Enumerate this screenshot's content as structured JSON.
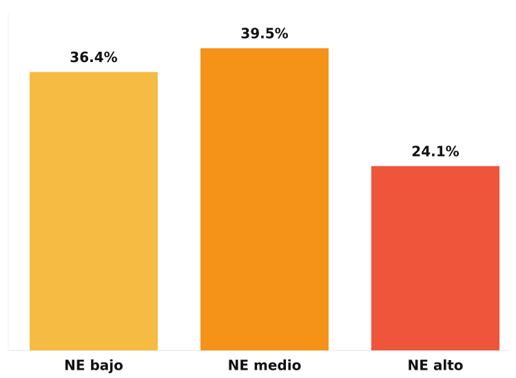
{
  "chart_data": {
    "type": "bar",
    "categories": [
      "NE bajo",
      "NE medio",
      "NE alto"
    ],
    "values": [
      36.4,
      39.5,
      24.1
    ],
    "value_labels": [
      "36.4%",
      "39.5%",
      "24.1%"
    ],
    "colors": [
      "#f6bb43",
      "#f59218",
      "#ef553a"
    ]
  }
}
